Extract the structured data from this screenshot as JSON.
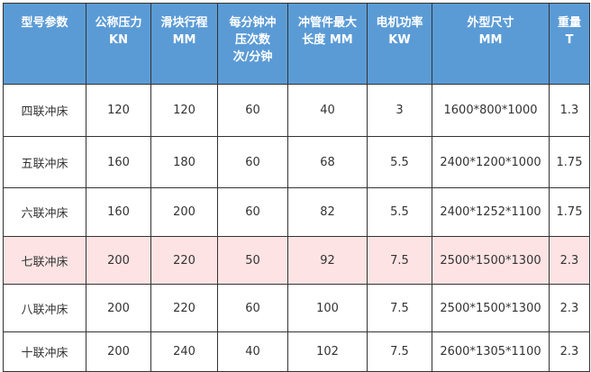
{
  "colors": {
    "header_bg": "#5b9bd5",
    "highlight_row": "#fde3e3"
  },
  "headers": [
    [
      "型号参数"
    ],
    [
      "公称压力",
      "KN"
    ],
    [
      "滑块行程",
      "MM"
    ],
    [
      "每分钟冲",
      "压次数",
      "次/分钟"
    ],
    [
      "冲管件最大",
      "长度 MM"
    ],
    [
      "电机功率",
      "KW"
    ],
    [
      "外型尺寸",
      "MM"
    ],
    [
      "重量",
      "T"
    ]
  ],
  "rows": [
    [
      "四联冲床",
      "120",
      "120",
      "60",
      "40",
      "3",
      "1600*800*1000",
      "1.3"
    ],
    [
      "五联冲床",
      "160",
      "180",
      "60",
      "68",
      "5.5",
      "2400*1200*1000",
      "1.75"
    ],
    [
      "六联冲床",
      "160",
      "200",
      "60",
      "82",
      "5.5",
      "2400*1252*1100",
      "1.75"
    ],
    [
      "七联冲床",
      "200",
      "220",
      "50",
      "92",
      "7.5",
      "2500*1500*1300",
      "2.3"
    ],
    [
      "八联冲床",
      "200",
      "220",
      "60",
      "100",
      "7.5",
      "2500*1500*1300",
      "2.3"
    ],
    [
      "十联冲床",
      "200",
      "240",
      "40",
      "102",
      "7.5",
      "2600*1305*1100",
      "2.3"
    ]
  ],
  "highlighted_row": 3
}
